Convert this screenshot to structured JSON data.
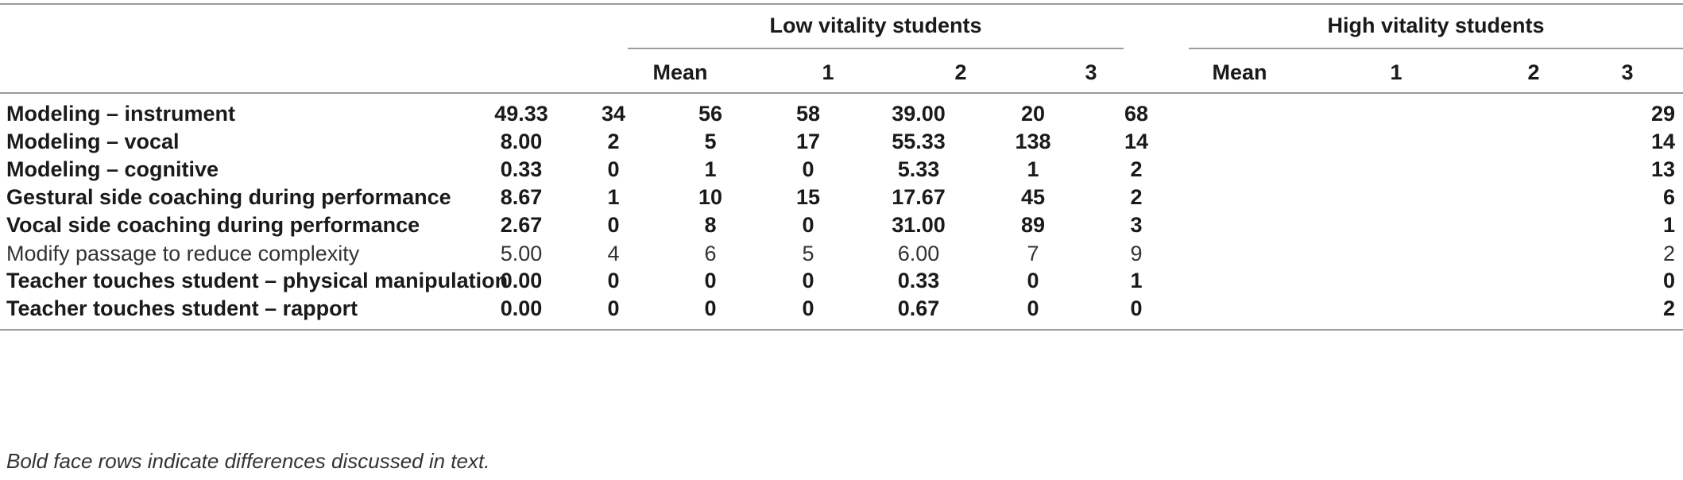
{
  "groups": [
    "Low vitality students",
    "High vitality students"
  ],
  "columns": [
    "Mean",
    "1",
    "2",
    "3",
    "Mean",
    "1",
    "2",
    "3"
  ],
  "rows": [
    {
      "label": "Modeling – instrument",
      "bold": true,
      "values": [
        "49.33",
        "34",
        "56",
        "58",
        "39.00",
        "20",
        "68",
        "29"
      ]
    },
    {
      "label": "Modeling – vocal",
      "bold": true,
      "values": [
        "8.00",
        "2",
        "5",
        "17",
        "55.33",
        "138",
        "14",
        "14"
      ]
    },
    {
      "label": "Modeling – cognitive",
      "bold": true,
      "values": [
        "0.33",
        "0",
        "1",
        "0",
        "5.33",
        "1",
        "2",
        "13"
      ]
    },
    {
      "label": "Gestural side coaching during performance",
      "bold": true,
      "values": [
        "8.67",
        "1",
        "10",
        "15",
        "17.67",
        "45",
        "2",
        "6"
      ]
    },
    {
      "label": "Vocal side coaching during performance",
      "bold": true,
      "values": [
        "2.67",
        "0",
        "8",
        "0",
        "31.00",
        "89",
        "3",
        "1"
      ]
    },
    {
      "label": "Modify passage to reduce complexity",
      "bold": false,
      "values": [
        "5.00",
        "4",
        "6",
        "5",
        "6.00",
        "7",
        "9",
        "2"
      ]
    },
    {
      "label": "Teacher touches student – physical manipulation",
      "bold": true,
      "values": [
        "0.00",
        "0",
        "0",
        "0",
        "0.33",
        "0",
        "1",
        "0"
      ]
    },
    {
      "label": "Teacher touches student – rapport",
      "bold": true,
      "values": [
        "0.00",
        "0",
        "0",
        "0",
        "0.67",
        "0",
        "0",
        "2"
      ]
    }
  ],
  "footnote": "Bold face rows indicate differences discussed in text."
}
